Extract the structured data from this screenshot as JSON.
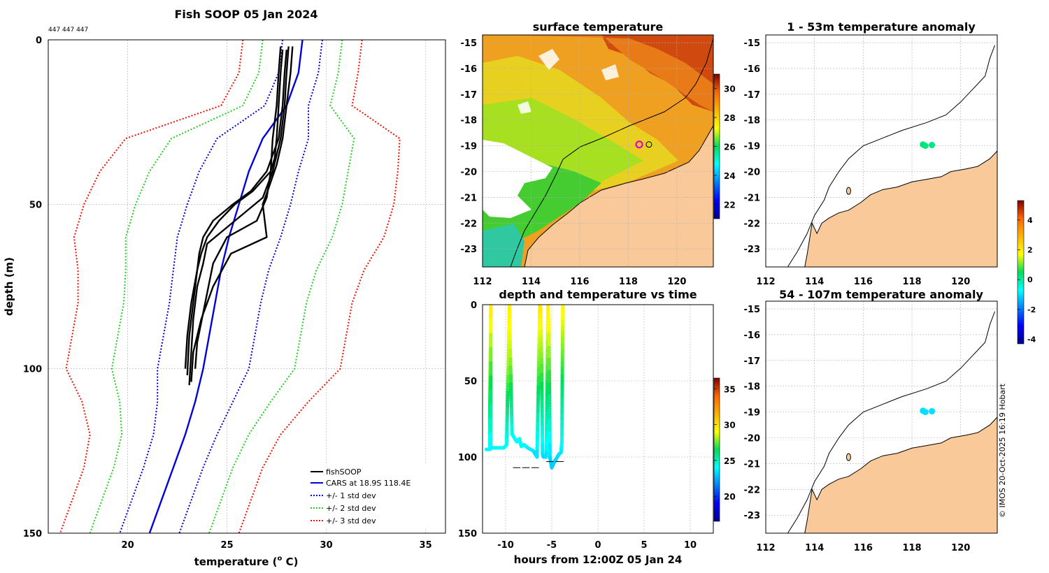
{
  "colors": {
    "fishsoop": "#000000",
    "cars": "#0000dd",
    "std1": "#0000cc",
    "std2": "#22cc22",
    "std3": "#ee1100",
    "land": "#f9c99a",
    "grid": "#b0b0b0"
  },
  "chart_data": [
    {
      "id": "profile",
      "type": "line",
      "title": "Fish SOOP 05 Jan 2024",
      "subtitle": "447 447 447",
      "xlabel": "temperature (°C)",
      "xlabel_main": "temperature (",
      "xlabel_sup": "o",
      "xlabel_end": " C)",
      "ylabel": "depth (m)",
      "xlim": [
        16,
        36
      ],
      "ylim": [
        0,
        150
      ],
      "y_reversed": true,
      "xticks": [
        20,
        25,
        30,
        35
      ],
      "yticks": [
        0,
        50,
        100,
        150
      ],
      "grid": true,
      "legend_position": "bottom-right",
      "legend": [
        {
          "label": "fishSOOP",
          "style": "solid",
          "color_key": "fishsoop"
        },
        {
          "label": "CARS at 18.9S 118.4E",
          "style": "solid",
          "color_key": "cars"
        },
        {
          "label": "+/- 1 std dev",
          "style": "dotted",
          "color_key": "std1"
        },
        {
          "label": "+/- 2 std dev",
          "style": "dotted",
          "color_key": "std2"
        },
        {
          "label": "+/- 3 std dev",
          "style": "dotted",
          "color_key": "std3"
        }
      ],
      "cars_mean": {
        "depth": [
          0,
          10,
          20,
          30,
          40,
          50,
          60,
          70,
          80,
          90,
          100,
          110,
          120,
          130,
          140,
          150
        ],
        "temp": [
          28.8,
          28.6,
          28.0,
          26.8,
          26.1,
          25.6,
          25.1,
          24.7,
          24.4,
          24.1,
          23.8,
          23.4,
          22.9,
          22.3,
          21.7,
          21.1
        ]
      },
      "std_dev": [
        {
          "k": 1,
          "depth": [
            0,
            10,
            20,
            30,
            40,
            50,
            60,
            70,
            80,
            90,
            100,
            110,
            120,
            130,
            140,
            150
          ],
          "sigma": [
            1.0,
            1.0,
            1.1,
            2.3,
            2.5,
            2.6,
            2.6,
            2.4,
            2.3,
            2.3,
            2.3,
            1.9,
            1.6,
            1.5,
            1.5,
            1.5
          ]
        },
        {
          "k": 2,
          "depth": [
            0,
            10,
            20,
            30,
            40,
            50,
            60,
            70,
            80,
            90,
            100,
            110,
            120,
            130,
            140,
            150
          ],
          "sigma": [
            1.0,
            1.0,
            1.1,
            2.3,
            2.5,
            2.6,
            2.6,
            2.4,
            2.3,
            2.3,
            2.3,
            1.9,
            1.6,
            1.5,
            1.5,
            1.5
          ]
        },
        {
          "k": 3,
          "depth": [
            0,
            10,
            20,
            30,
            40,
            50,
            60,
            70,
            80,
            90,
            100,
            110,
            120,
            130,
            140,
            150
          ],
          "sigma": [
            1.0,
            1.0,
            1.1,
            2.3,
            2.5,
            2.6,
            2.6,
            2.4,
            2.3,
            2.3,
            2.3,
            1.9,
            1.6,
            1.5,
            1.5,
            1.5
          ]
        }
      ],
      "fishsoop_profiles": [
        {
          "depth": [
            3,
            10,
            20,
            30,
            36,
            40,
            46,
            50,
            55,
            60,
            65,
            70,
            80,
            90,
            100
          ],
          "temp": [
            27.8,
            27.7,
            27.6,
            27.5,
            27.4,
            27.2,
            26.3,
            25.4,
            24.6,
            24.0,
            23.7,
            23.5,
            23.2,
            23.0,
            22.9
          ]
        },
        {
          "depth": [
            3,
            10,
            20,
            30,
            40,
            46,
            50,
            55,
            60,
            65,
            70,
            80,
            90,
            102
          ],
          "temp": [
            28.0,
            27.9,
            27.8,
            27.6,
            27.0,
            26.2,
            25.3,
            24.3,
            23.8,
            23.6,
            23.5,
            23.3,
            23.1,
            23.0
          ]
        },
        {
          "depth": [
            2,
            10,
            20,
            30,
            40,
            48,
            52,
            58,
            62,
            68,
            75,
            85,
            95,
            105
          ],
          "temp": [
            28.1,
            28.0,
            27.9,
            27.7,
            27.3,
            26.8,
            26.0,
            24.8,
            24.0,
            23.8,
            23.5,
            23.3,
            23.2,
            23.1
          ]
        },
        {
          "depth": [
            2,
            10,
            20,
            30,
            38,
            45,
            50,
            55,
            60,
            65,
            75,
            85,
            95,
            104
          ],
          "temp": [
            28.3,
            28.2,
            28.0,
            27.8,
            27.5,
            27.1,
            26.8,
            26.9,
            27.0,
            25.2,
            24.3,
            23.7,
            23.3,
            23.2
          ]
        },
        {
          "depth": [
            2,
            10,
            20,
            30,
            40,
            48,
            55,
            60,
            68,
            80,
            92,
            100
          ],
          "temp": [
            27.7,
            27.6,
            27.5,
            27.3,
            27.2,
            27.0,
            26.5,
            25.0,
            24.3,
            23.9,
            23.5,
            23.4
          ]
        }
      ]
    },
    {
      "id": "sst_map",
      "type": "heatmap",
      "title": "surface temperature",
      "xlim": [
        112,
        121.5
      ],
      "ylim": [
        -23.7,
        -14.7
      ],
      "xticks": [
        112,
        114,
        116,
        118,
        120
      ],
      "yticks": [
        -15,
        -16,
        -17,
        -18,
        -19,
        -20,
        -21,
        -22,
        -23
      ],
      "colorbar": {
        "min": 21,
        "max": 31,
        "ticks": [
          22,
          24,
          26,
          28,
          30
        ]
      },
      "markers": [
        {
          "lon": 118.45,
          "lat": -18.95,
          "style": "magenta-ring"
        },
        {
          "lon": 118.85,
          "lat": -18.95,
          "style": "black-ring"
        }
      ]
    },
    {
      "id": "depth_time",
      "type": "scatter",
      "title": "depth and temperature vs time",
      "xlabel": "hours from 12:00Z 05 Jan 24",
      "xlim": [
        -12.5,
        12.5
      ],
      "ylim": [
        0,
        150
      ],
      "y_reversed": true,
      "xticks": [
        -10,
        -5,
        0,
        5,
        10
      ],
      "yticks": [
        0,
        50,
        100,
        150
      ],
      "colorbar": {
        "min": 16.5,
        "max": 36.5,
        "ticks": [
          20,
          25,
          30,
          35
        ]
      },
      "bottom_depth_dashes": [
        {
          "x0": -9.2,
          "x1": -8.4,
          "depth": 107
        },
        {
          "x0": -8.2,
          "x1": -7.4,
          "depth": 107
        },
        {
          "x0": -7.2,
          "x1": -6.4,
          "depth": 107
        },
        {
          "x0": -5.6,
          "x1": -4.8,
          "depth": 103
        },
        {
          "x0": -4.6,
          "x1": -3.7,
          "depth": 103
        }
      ],
      "track": {
        "hour": [
          -12.1,
          -11.7,
          -11.7,
          -11.6,
          -11.6,
          -10.2,
          -9.9,
          -9.7,
          -9.6,
          -9.5,
          -9.3,
          -8.8,
          -8.5,
          -8.3,
          -8.0,
          -7.6,
          -7.0,
          -6.6,
          -6.4,
          -6.3,
          -6.2,
          -6.1,
          -6.0,
          -5.9,
          -5.6,
          -5.5,
          -5.4,
          -5.3,
          -5.2,
          -5.0,
          -4.7,
          -4.4,
          -4.2,
          -4.0,
          -3.9,
          -3.85,
          -3.8
        ],
        "depth": [
          95,
          95,
          60,
          1,
          94,
          94,
          92,
          40,
          1,
          30,
          85,
          90,
          88,
          93,
          92,
          94,
          96,
          100,
          40,
          1,
          2,
          40,
          98,
          100,
          100,
          55,
          1,
          20,
          100,
          107,
          103,
          100,
          98,
          97,
          90,
          40,
          1
        ],
        "temp": [
          23.8,
          23.8,
          27.0,
          29.8,
          23.8,
          23.9,
          24.0,
          28.0,
          29.5,
          28.5,
          24.2,
          24.0,
          24.0,
          23.9,
          23.9,
          23.8,
          23.6,
          23.3,
          27.5,
          29.8,
          29.7,
          27.5,
          23.5,
          23.3,
          23.3,
          26.5,
          29.5,
          28.8,
          23.3,
          23.0,
          23.1,
          23.3,
          23.4,
          23.5,
          24.0,
          27.0,
          29.3
        ]
      }
    },
    {
      "id": "anomaly_shallow",
      "type": "scatter",
      "title": "1 - 53m temperature anomaly",
      "xlim": [
        112,
        121.5
      ],
      "ylim": [
        -23.7,
        -14.7
      ],
      "xticks": [
        112,
        114,
        116,
        118,
        120
      ],
      "yticks": [
        -15,
        -16,
        -17,
        -18,
        -19,
        -20,
        -21,
        -22,
        -23
      ],
      "points": [
        {
          "lon": 118.45,
          "lat": -18.95,
          "anomaly": 0.3
        },
        {
          "lon": 118.55,
          "lat": -19.0,
          "anomaly": 0.2
        },
        {
          "lon": 118.82,
          "lat": -18.97,
          "anomaly": 0.2
        }
      ]
    },
    {
      "id": "anomaly_deep",
      "type": "scatter",
      "title": "54 - 107m temperature anomaly",
      "xlim": [
        112,
        121.5
      ],
      "ylim": [
        -23.7,
        -14.7
      ],
      "xticks": [
        112,
        114,
        116,
        118,
        120
      ],
      "yticks": [
        -15,
        -16,
        -17,
        -18,
        -19,
        -20,
        -21,
        -22,
        -23
      ],
      "colorbar": {
        "min": -4.3,
        "max": 5.3,
        "ticks": [
          4,
          2,
          0,
          -2,
          -4
        ]
      },
      "points": [
        {
          "lon": 118.45,
          "lat": -18.95,
          "anomaly": -1.0
        },
        {
          "lon": 118.55,
          "lat": -19.0,
          "anomaly": -1.0
        },
        {
          "lon": 118.82,
          "lat": -18.97,
          "anomaly": -1.0
        }
      ]
    }
  ],
  "footer": {
    "credit": "© IMOS 20-Oct-2025 16:19 Hobart"
  }
}
